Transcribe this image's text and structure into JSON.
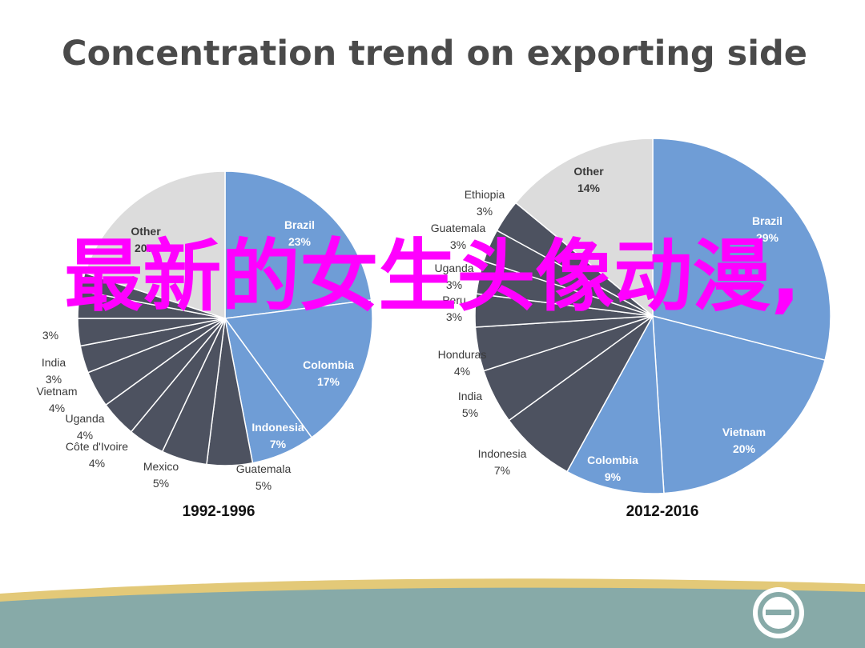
{
  "slide": {
    "title": "Concentration trend on exporting side",
    "overlay_text": "最新的女生头像动漫,"
  },
  "colors": {
    "blue": "#6f9dd6",
    "grey": "#dcdcdc",
    "dark": "#4d5260",
    "overlay": "#ff00ff",
    "footer_teal": "#87aaa8",
    "footer_gold": "#e3c978"
  },
  "chart_data": [
    {
      "type": "pie",
      "title": "1992-1996",
      "slices": [
        {
          "label": "Brazil",
          "value": 23,
          "display": "23%",
          "color": "blue"
        },
        {
          "label": "Colombia",
          "value": 17,
          "display": "17%",
          "color": "blue"
        },
        {
          "label": "Indonesia",
          "value": 7,
          "display": "7%",
          "color": "blue"
        },
        {
          "label": "Guatemala",
          "value": 5,
          "display": "5%",
          "color": "dark"
        },
        {
          "label": "Mexico",
          "value": 5,
          "display": "5%",
          "color": "dark"
        },
        {
          "label": "Côte d'Ivoire",
          "value": 4,
          "display": "4%",
          "color": "dark"
        },
        {
          "label": "Uganda",
          "value": 4,
          "display": "4%",
          "color": "dark"
        },
        {
          "label": "Vietnam",
          "value": 4,
          "display": "4%",
          "color": "dark"
        },
        {
          "label": "India",
          "value": 3,
          "display": "3%",
          "color": "dark"
        },
        {
          "label": "",
          "value": 3,
          "display": "3%",
          "color": "dark"
        },
        {
          "label": "",
          "value": 3,
          "display": "",
          "color": "dark"
        },
        {
          "label": "",
          "value": 2,
          "display": "",
          "color": "dark"
        },
        {
          "label": "Other",
          "value": 20,
          "display": "20%",
          "color": "grey"
        }
      ]
    },
    {
      "type": "pie",
      "title": "2012-2016",
      "slices": [
        {
          "label": "Brazil",
          "value": 29,
          "display": "29%",
          "color": "blue"
        },
        {
          "label": "Vietnam",
          "value": 20,
          "display": "20%",
          "color": "blue"
        },
        {
          "label": "Colombia",
          "value": 9,
          "display": "9%",
          "color": "blue"
        },
        {
          "label": "Indonesia",
          "value": 7,
          "display": "7%",
          "color": "dark"
        },
        {
          "label": "India",
          "value": 5,
          "display": "5%",
          "color": "dark"
        },
        {
          "label": "Honduras",
          "value": 4,
          "display": "4%",
          "color": "dark"
        },
        {
          "label": "Peru",
          "value": 3,
          "display": "3%",
          "color": "dark"
        },
        {
          "label": "Uganda",
          "value": 3,
          "display": "3%",
          "color": "dark"
        },
        {
          "label": "Guatemala",
          "value": 3,
          "display": "3%",
          "color": "dark"
        },
        {
          "label": "Ethiopia",
          "value": 3,
          "display": "3%",
          "color": "dark"
        },
        {
          "label": "Other",
          "value": 14,
          "display": "14%",
          "color": "grey"
        }
      ]
    }
  ]
}
